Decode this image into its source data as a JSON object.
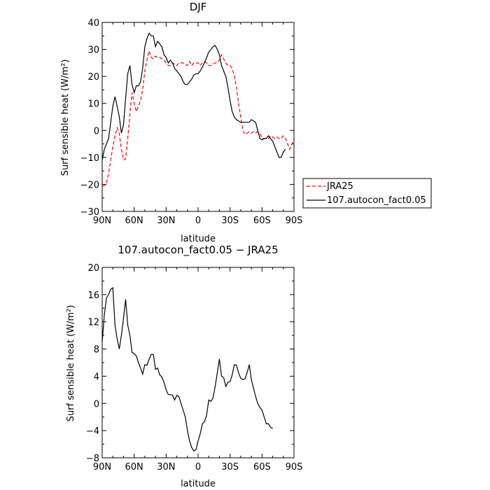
{
  "chart_data": [
    {
      "type": "line",
      "title": "DJF",
      "xlabel": "latitude",
      "ylabel": "Surf sensible heat (W/m²)",
      "ylim": [
        -30,
        40
      ],
      "yticks": [
        -30,
        -20,
        -10,
        0,
        10,
        20,
        30,
        40
      ],
      "xlim": [
        90,
        -90
      ],
      "xticks": [
        90,
        60,
        30,
        0,
        -30,
        -60,
        -90
      ],
      "xticklabels": [
        "90N",
        "60N",
        "30N",
        "0",
        "30S",
        "60S",
        "90S"
      ],
      "legend_position": "right",
      "series": [
        {
          "name": "JRA25",
          "color": "#ff0000",
          "dash": "dashed",
          "points": [
            [
              90,
              -20.5
            ],
            [
              88,
              -20.5
            ],
            [
              86,
              -19.5
            ],
            [
              84,
              -16
            ],
            [
              82,
              -11
            ],
            [
              80,
              -6
            ],
            [
              78,
              -2
            ],
            [
              76,
              1
            ],
            [
              74,
              -1
            ],
            [
              72,
              -7
            ],
            [
              70,
              -11
            ],
            [
              68,
              -10.5
            ],
            [
              66,
              -3
            ],
            [
              64,
              6
            ],
            [
              62,
              14
            ],
            [
              60,
              10
            ],
            [
              58,
              7
            ],
            [
              56,
              9
            ],
            [
              54,
              11
            ],
            [
              52,
              15
            ],
            [
              50,
              22
            ],
            [
              48,
              26
            ],
            [
              46,
              29.5
            ],
            [
              44,
              27
            ],
            [
              42,
              26.5
            ],
            [
              40,
              27.5
            ],
            [
              38,
              27
            ],
            [
              36,
              27
            ],
            [
              34,
              26.5
            ],
            [
              32,
              26
            ],
            [
              30,
              25
            ],
            [
              28,
              24
            ],
            [
              26,
              24
            ],
            [
              24,
              25
            ],
            [
              22,
              24.5
            ],
            [
              20,
              24
            ],
            [
              18,
              25
            ],
            [
              16,
              25
            ],
            [
              14,
              25
            ],
            [
              12,
              24.5
            ],
            [
              10,
              24
            ],
            [
              8,
              25.5
            ],
            [
              6,
              24
            ],
            [
              4,
              25
            ],
            [
              2,
              25
            ],
            [
              0,
              25
            ],
            [
              -2,
              24
            ],
            [
              -4,
              25
            ],
            [
              -6,
              25.5
            ],
            [
              -8,
              25
            ],
            [
              -10,
              24
            ],
            [
              -12,
              24
            ],
            [
              -14,
              24.5
            ],
            [
              -16,
              25
            ],
            [
              -18,
              25
            ],
            [
              -20,
              26
            ],
            [
              -22,
              28
            ],
            [
              -24,
              26.5
            ],
            [
              -26,
              25
            ],
            [
              -28,
              24
            ],
            [
              -30,
              24
            ],
            [
              -32,
              23
            ],
            [
              -34,
              20
            ],
            [
              -36,
              16
            ],
            [
              -38,
              10
            ],
            [
              -40,
              5
            ],
            [
              -42,
              0
            ],
            [
              -44,
              -1.5
            ],
            [
              -46,
              -1
            ],
            [
              -48,
              -0.5
            ],
            [
              -50,
              -1
            ],
            [
              -52,
              -0.5
            ],
            [
              -54,
              -1
            ],
            [
              -56,
              -0.5
            ],
            [
              -58,
              -1
            ],
            [
              -60,
              -3
            ],
            [
              -62,
              -3
            ],
            [
              -64,
              -3
            ],
            [
              -66,
              -3
            ],
            [
              -68,
              -2
            ],
            [
              -70,
              -2.5
            ],
            [
              -72,
              -3
            ],
            [
              -74,
              -2.5
            ],
            [
              -76,
              -3
            ],
            [
              -78,
              -3
            ],
            [
              -80,
              -2
            ],
            [
              -82,
              -3
            ],
            [
              -84,
              -5
            ],
            [
              -86,
              -7
            ],
            [
              -88,
              -5
            ],
            [
              -90,
              -3
            ]
          ]
        },
        {
          "name": "107.autocon_fact0.05",
          "color": "#000000",
          "dash": "solid",
          "points": [
            [
              90,
              -11
            ],
            [
              88,
              -7
            ],
            [
              86,
              -5
            ],
            [
              84,
              -3
            ],
            [
              82,
              3
            ],
            [
              80,
              9
            ],
            [
              78,
              12.5
            ],
            [
              76,
              9
            ],
            [
              74,
              5
            ],
            [
              72,
              -1
            ],
            [
              70,
              2
            ],
            [
              68,
              12
            ],
            [
              66,
              21
            ],
            [
              64,
              24
            ],
            [
              62,
              17
            ],
            [
              60,
              14
            ],
            [
              58,
              16.5
            ],
            [
              56,
              16.5
            ],
            [
              54,
              18
            ],
            [
              52,
              23
            ],
            [
              50,
              31
            ],
            [
              48,
              34
            ],
            [
              46,
              36
            ],
            [
              44,
              35
            ],
            [
              42,
              35
            ],
            [
              40,
              31
            ],
            [
              38,
              33
            ],
            [
              36,
              32
            ],
            [
              34,
              31
            ],
            [
              32,
              28
            ],
            [
              30,
              27
            ],
            [
              28,
              25
            ],
            [
              26,
              26
            ],
            [
              24,
              25
            ],
            [
              22,
              23
            ],
            [
              20,
              22
            ],
            [
              18,
              21
            ],
            [
              16,
              20
            ],
            [
              14,
              18
            ],
            [
              12,
              17
            ],
            [
              10,
              17
            ],
            [
              8,
              18
            ],
            [
              6,
              19
            ],
            [
              4,
              20.5
            ],
            [
              2,
              21
            ],
            [
              0,
              21
            ],
            [
              -2,
              22
            ],
            [
              -4,
              23.5
            ],
            [
              -6,
              25
            ],
            [
              -8,
              27
            ],
            [
              -10,
              29
            ],
            [
              -12,
              30
            ],
            [
              -14,
              31
            ],
            [
              -16,
              31.5
            ],
            [
              -18,
              30
            ],
            [
              -20,
              28
            ],
            [
              -22,
              24
            ],
            [
              -24,
              22
            ],
            [
              -26,
              20
            ],
            [
              -28,
              16
            ],
            [
              -30,
              11
            ],
            [
              -32,
              7
            ],
            [
              -34,
              5
            ],
            [
              -36,
              4
            ],
            [
              -38,
              3.5
            ],
            [
              -40,
              3
            ],
            [
              -42,
              3
            ],
            [
              -44,
              3
            ],
            [
              -46,
              3
            ],
            [
              -48,
              3
            ],
            [
              -50,
              4
            ],
            [
              -52,
              3.5
            ],
            [
              -54,
              3
            ],
            [
              -56,
              0
            ],
            [
              -58,
              -3
            ],
            [
              -60,
              -3.5
            ],
            [
              -62,
              -3
            ],
            [
              -64,
              -3
            ],
            [
              -66,
              -2
            ],
            [
              -68,
              -3
            ],
            [
              -70,
              -4
            ],
            [
              -72,
              -6
            ],
            [
              -74,
              -8
            ],
            [
              -76,
              -10
            ],
            [
              -78,
              -10
            ],
            [
              -80,
              -8
            ],
            [
              -82,
              -7
            ]
          ]
        }
      ]
    },
    {
      "type": "line",
      "title": "107.autocon_fact0.05 − JRA25",
      "xlabel": "latitude",
      "ylabel": "Surf sensible heat (W/m²)",
      "ylim": [
        -8,
        20
      ],
      "yticks": [
        -8,
        -4,
        0,
        4,
        8,
        12,
        16,
        20
      ],
      "xlim": [
        90,
        -90
      ],
      "xticks": [
        90,
        60,
        30,
        0,
        -30,
        -60,
        -90
      ],
      "xticklabels": [
        "90N",
        "60N",
        "30N",
        "0",
        "30S",
        "60S",
        "90S"
      ],
      "series": [
        {
          "color": "#000000",
          "dash": "solid",
          "points": [
            [
              90,
              9
            ],
            [
              88,
              13
            ],
            [
              86,
              15.5
            ],
            [
              84,
              16
            ],
            [
              82,
              16.8
            ],
            [
              80,
              17
            ],
            [
              78,
              11.5
            ],
            [
              76,
              9.5
            ],
            [
              74,
              8
            ],
            [
              72,
              10
            ],
            [
              70,
              12.5
            ],
            [
              68,
              15.3
            ],
            [
              66,
              11.5
            ],
            [
              64,
              10
            ],
            [
              62,
              7.5
            ],
            [
              60,
              7.3
            ],
            [
              58,
              7.0
            ],
            [
              56,
              6
            ],
            [
              54,
              5.2
            ],
            [
              52,
              4.3
            ],
            [
              50,
              5.7
            ],
            [
              48,
              5.6
            ],
            [
              46,
              6.5
            ],
            [
              44,
              7.2
            ],
            [
              42,
              7.2
            ],
            [
              40,
              5
            ],
            [
              38,
              5.2
            ],
            [
              36,
              4.2
            ],
            [
              34,
              3.9
            ],
            [
              32,
              3.1
            ],
            [
              30,
              2
            ],
            [
              28,
              1.3
            ],
            [
              26,
              1.3
            ],
            [
              24,
              1.2
            ],
            [
              22,
              0.5
            ],
            [
              20,
              1.2
            ],
            [
              18,
              1
            ],
            [
              16,
              0
            ],
            [
              14,
              -1
            ],
            [
              12,
              -2
            ],
            [
              10,
              -4
            ],
            [
              8,
              -5.5
            ],
            [
              6,
              -6.5
            ],
            [
              4,
              -7.0
            ],
            [
              2,
              -6.8
            ],
            [
              0,
              -5.5
            ],
            [
              -2,
              -4.5
            ],
            [
              -4,
              -3
            ],
            [
              -6,
              -2.7
            ],
            [
              -8,
              -1.7
            ],
            [
              -10,
              0.5
            ],
            [
              -12,
              0.3
            ],
            [
              -14,
              0.8
            ],
            [
              -16,
              2.5
            ],
            [
              -18,
              4.5
            ],
            [
              -20,
              6.5
            ],
            [
              -22,
              4
            ],
            [
              -24,
              3.8
            ],
            [
              -26,
              2.5
            ],
            [
              -28,
              3.1
            ],
            [
              -30,
              3.2
            ],
            [
              -32,
              4.2
            ],
            [
              -34,
              5.7
            ],
            [
              -36,
              5.6
            ],
            [
              -38,
              4.5
            ],
            [
              -40,
              3.7
            ],
            [
              -42,
              3.5
            ],
            [
              -44,
              3.6
            ],
            [
              -46,
              4.5
            ],
            [
              -48,
              5.7
            ],
            [
              -50,
              3.5
            ],
            [
              -52,
              2.2
            ],
            [
              -54,
              1
            ],
            [
              -56,
              0
            ],
            [
              -58,
              -0.6
            ],
            [
              -60,
              -1
            ],
            [
              -62,
              -2
            ],
            [
              -64,
              -3
            ],
            [
              -66,
              -3
            ],
            [
              -68,
              -3.5
            ],
            [
              -70,
              -3.7
            ]
          ]
        }
      ]
    }
  ]
}
